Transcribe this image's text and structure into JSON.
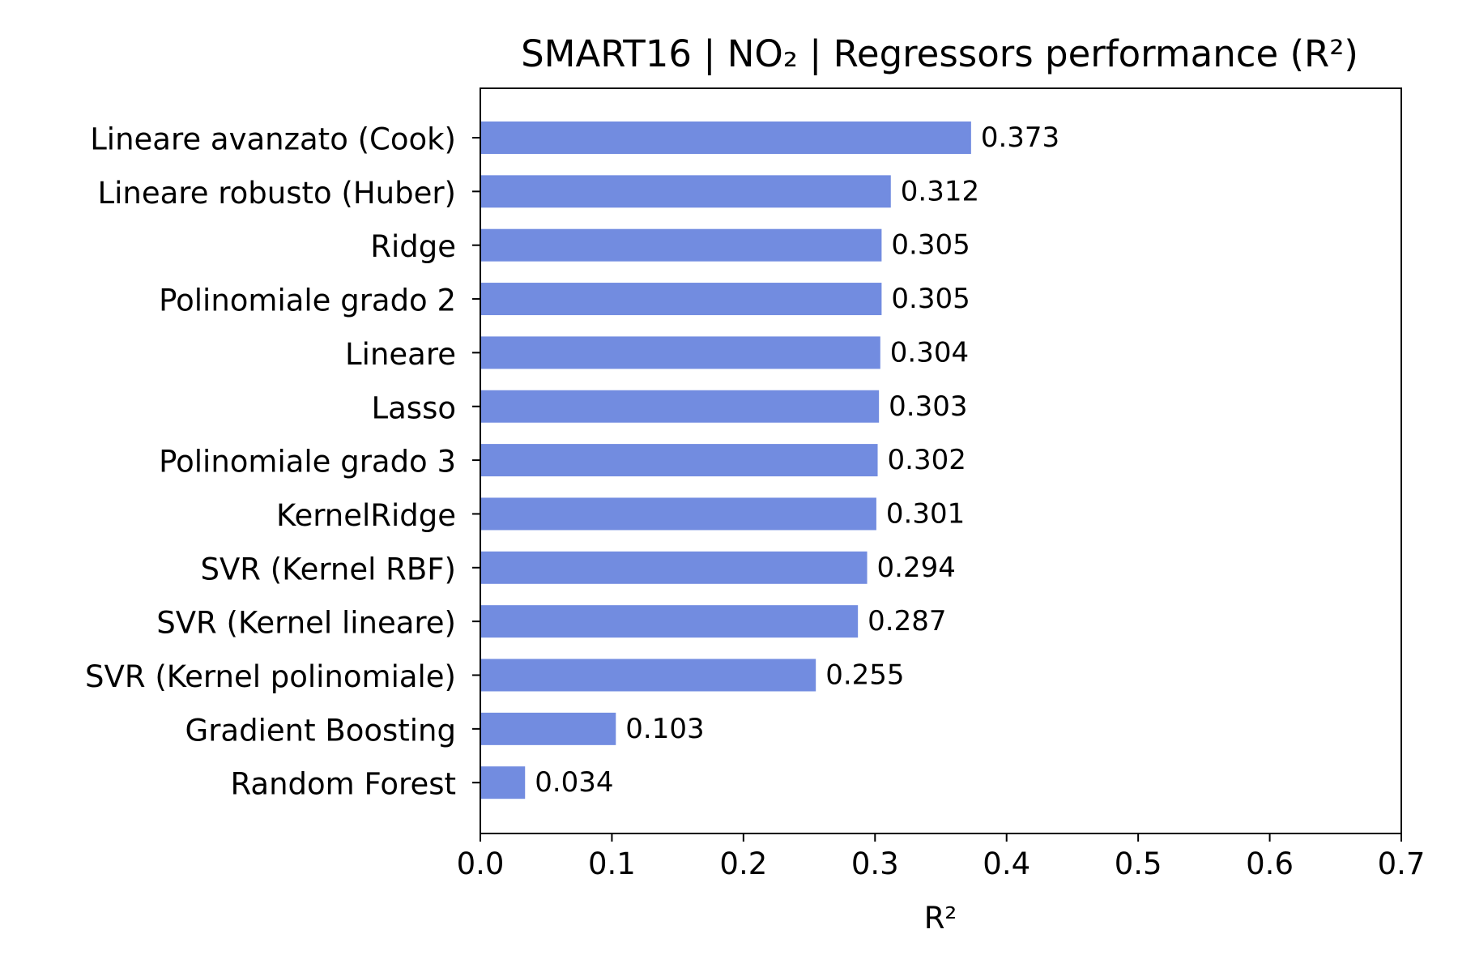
{
  "chart_data": {
    "type": "bar",
    "orientation": "horizontal",
    "title": "SMART16 | NO₂ | Regressors performance (R²)",
    "xlabel": "R²",
    "ylabel": "",
    "xlim": [
      0.0,
      0.7
    ],
    "xticks": [
      "0.0",
      "0.1",
      "0.2",
      "0.3",
      "0.4",
      "0.5",
      "0.6",
      "0.7"
    ],
    "grid": false,
    "bar_color": "#728ce0",
    "categories": [
      "Lineare avanzato (Cook)",
      "Lineare robusto (Huber)",
      "Ridge",
      "Polinomiale grado 2",
      "Lineare",
      "Lasso",
      "Polinomiale grado 3",
      "KernelRidge",
      "SVR (Kernel RBF)",
      "SVR (Kernel lineare)",
      "SVR (Kernel polinomiale)",
      "Gradient Boosting",
      "Random Forest"
    ],
    "values": [
      0.373,
      0.312,
      0.305,
      0.305,
      0.304,
      0.303,
      0.302,
      0.301,
      0.294,
      0.287,
      0.255,
      0.103,
      0.034
    ],
    "value_labels": [
      "0.373",
      "0.312",
      "0.305",
      "0.305",
      "0.304",
      "0.303",
      "0.302",
      "0.301",
      "0.294",
      "0.287",
      "0.255",
      "0.103",
      "0.034"
    ]
  }
}
